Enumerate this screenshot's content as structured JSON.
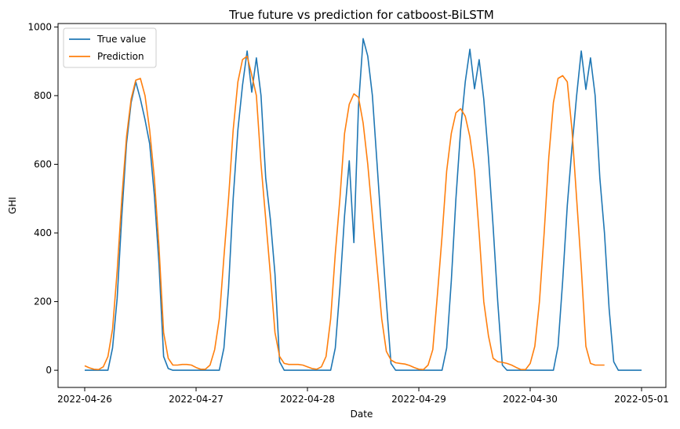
{
  "chart_data": {
    "type": "line",
    "title": "True future vs prediction for catboost-BiLSTM",
    "xlabel": "Date",
    "ylabel": "GHI",
    "x_ticks": [
      "2022-04-26",
      "2022-04-27",
      "2022-04-28",
      "2022-04-29",
      "2022-04-30",
      "2022-05-01"
    ],
    "y_ticks": [
      0,
      200,
      400,
      600,
      800,
      1000
    ],
    "xlim": [
      "2022-04-25 19:00",
      "2022-05-01 06:00"
    ],
    "ylim": [
      -50,
      1010
    ],
    "x_time_step_hours": 1,
    "x_start": "2022-04-26 00:00",
    "grid": false,
    "legend_position": "top-left",
    "series": [
      {
        "name": "True value",
        "color": "#1f77b4",
        "values": [
          0,
          0,
          0,
          0,
          0,
          0,
          65,
          210,
          450,
          660,
          780,
          840,
          790,
          730,
          660,
          510,
          310,
          40,
          5,
          0,
          0,
          0,
          0,
          0,
          0,
          0,
          0,
          0,
          0,
          0,
          65,
          240,
          500,
          700,
          830,
          930,
          810,
          910,
          800,
          560,
          440,
          280,
          25,
          0,
          0,
          0,
          0,
          0,
          0,
          0,
          0,
          0,
          0,
          0,
          65,
          240,
          450,
          610,
          372,
          770,
          966,
          915,
          800,
          600,
          400,
          200,
          20,
          0,
          0,
          0,
          0,
          0,
          0,
          0,
          0,
          0,
          0,
          0,
          65,
          260,
          500,
          700,
          840,
          935,
          820,
          905,
          790,
          620,
          420,
          200,
          15,
          0,
          0,
          0,
          0,
          0,
          0,
          0,
          0,
          0,
          0,
          0,
          70,
          260,
          480,
          650,
          800,
          930,
          818,
          910,
          800,
          560,
          400,
          180,
          25,
          0,
          0,
          0,
          0,
          0,
          0
        ]
      },
      {
        "name": "Prediction",
        "color": "#ff7f0e",
        "values": [
          13,
          7,
          3,
          2,
          10,
          40,
          120,
          290,
          500,
          680,
          790,
          845,
          850,
          800,
          700,
          560,
          360,
          110,
          35,
          15,
          15,
          17,
          17,
          15,
          8,
          3,
          3,
          15,
          60,
          150,
          330,
          500,
          700,
          840,
          905,
          915,
          860,
          800,
          600,
          440,
          280,
          110,
          40,
          20,
          17,
          17,
          17,
          15,
          10,
          5,
          3,
          10,
          40,
          150,
          340,
          500,
          690,
          775,
          805,
          795,
          720,
          600,
          450,
          300,
          150,
          55,
          30,
          22,
          20,
          18,
          14,
          8,
          3,
          2,
          15,
          60,
          220,
          390,
          580,
          690,
          750,
          762,
          740,
          680,
          580,
          400,
          200,
          100,
          35,
          25,
          23,
          20,
          15,
          8,
          2,
          2,
          20,
          70,
          200,
          400,
          620,
          780,
          850,
          858,
          840,
          700,
          500,
          300,
          70,
          20,
          15,
          15,
          15
        ]
      }
    ]
  }
}
